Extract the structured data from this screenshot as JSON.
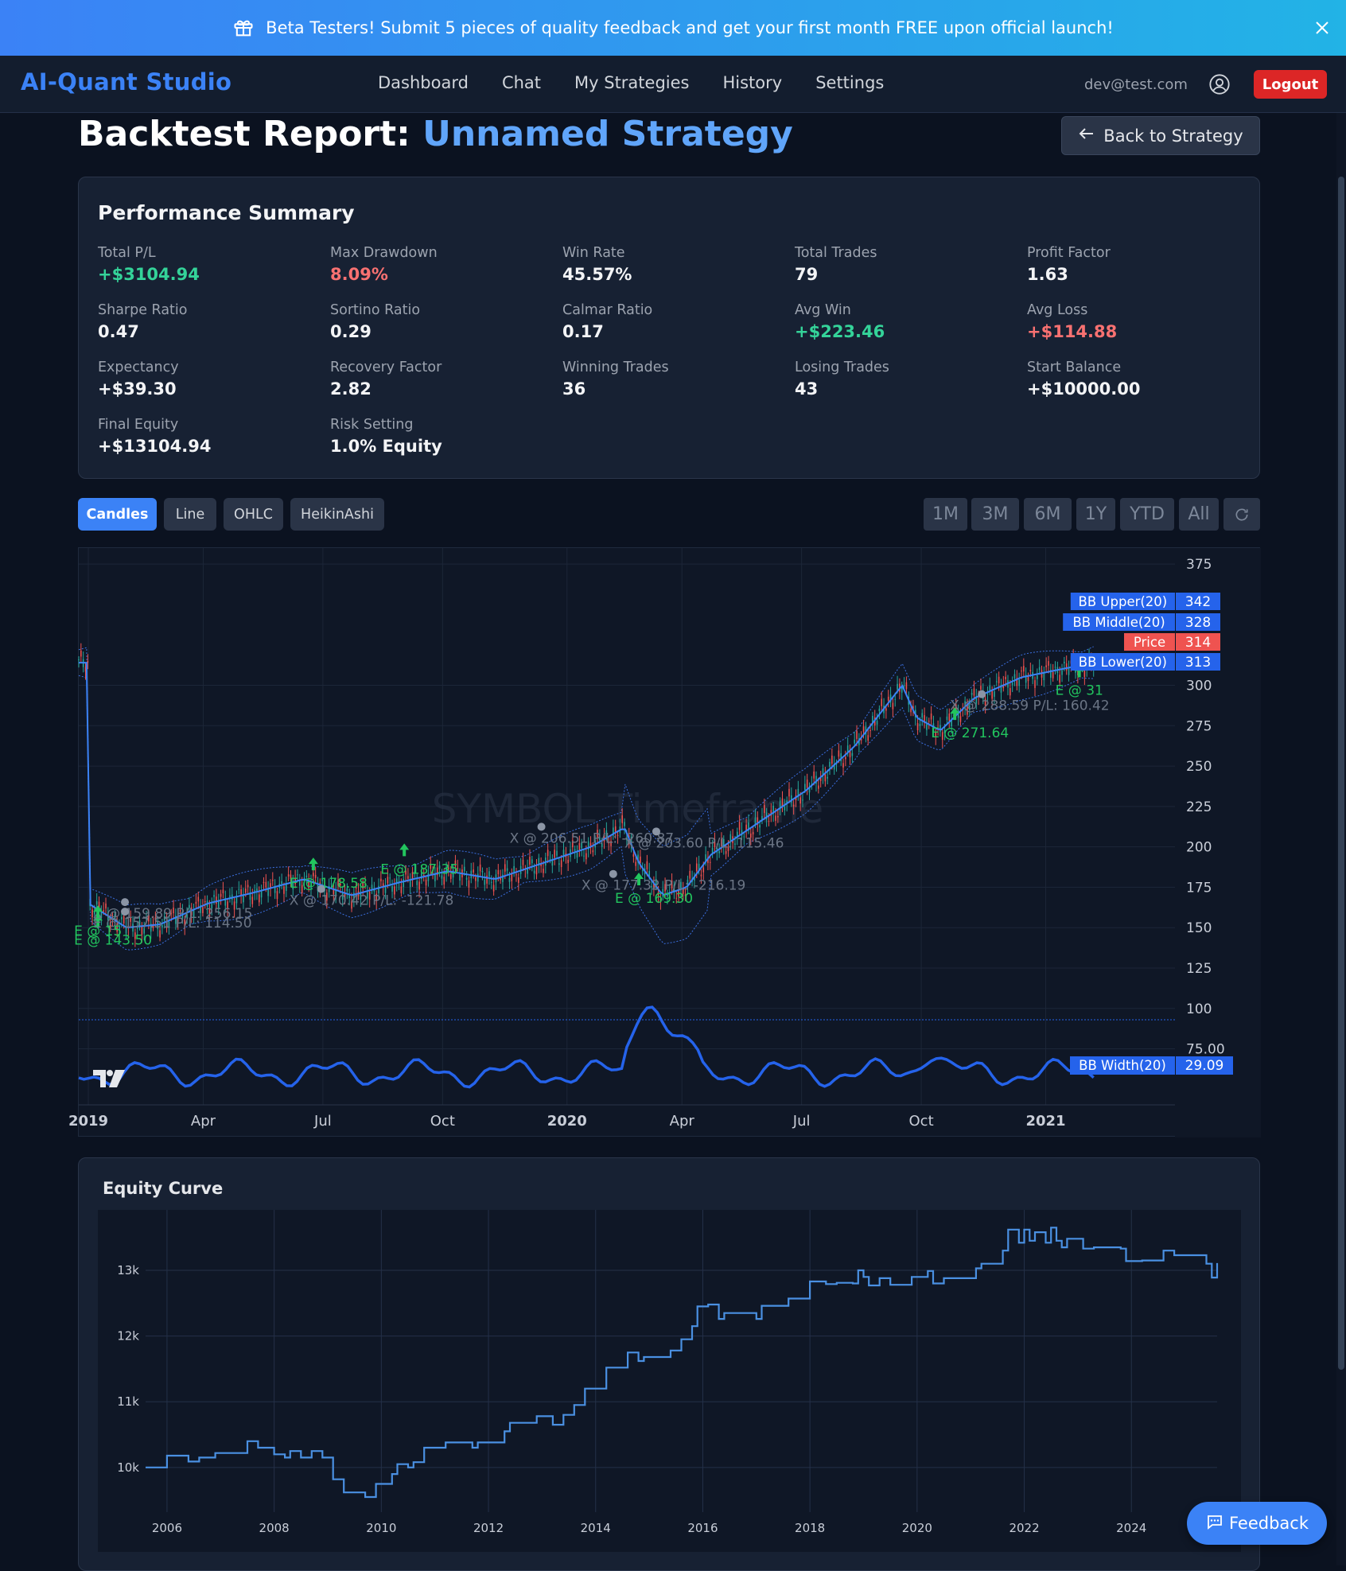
{
  "banner": {
    "text": "Beta Testers! Submit 5 pieces of quality feedback and get your first month FREE upon official launch!",
    "icon": "gift-icon",
    "close_icon": "close-icon"
  },
  "nav": {
    "brand": "AI-Quant Studio",
    "links": [
      "Dashboard",
      "Chat",
      "My Strategies",
      "History",
      "Settings"
    ],
    "user_email": "dev@test.com",
    "user_icon": "user-circle-icon",
    "logout_label": "Logout"
  },
  "page": {
    "title_prefix": "Backtest Report: ",
    "strategy_name": "Unnamed Strategy",
    "back_label": "Back to Strategy",
    "back_icon": "arrow-left-icon"
  },
  "performance": {
    "heading": "Performance Summary",
    "metrics": [
      {
        "label": "Total P/L",
        "value": "+$3104.94",
        "tone": "pos"
      },
      {
        "label": "Max Drawdown",
        "value": "8.09%",
        "tone": "neg"
      },
      {
        "label": "Win Rate",
        "value": "45.57%",
        "tone": ""
      },
      {
        "label": "Total Trades",
        "value": "79",
        "tone": ""
      },
      {
        "label": "Profit Factor",
        "value": "1.63",
        "tone": ""
      },
      {
        "label": "Sharpe Ratio",
        "value": "0.47",
        "tone": ""
      },
      {
        "label": "Sortino Ratio",
        "value": "0.29",
        "tone": ""
      },
      {
        "label": "Calmar Ratio",
        "value": "0.17",
        "tone": ""
      },
      {
        "label": "Avg Win",
        "value": "+$223.46",
        "tone": "pos"
      },
      {
        "label": "Avg Loss",
        "value": "+$114.88",
        "tone": "neg"
      },
      {
        "label": "Expectancy",
        "value": "+$39.30",
        "tone": ""
      },
      {
        "label": "Recovery Factor",
        "value": "2.82",
        "tone": ""
      },
      {
        "label": "Winning Trades",
        "value": "36",
        "tone": ""
      },
      {
        "label": "Losing Trades",
        "value": "43",
        "tone": ""
      },
      {
        "label": "Start Balance",
        "value": "+$10000.00",
        "tone": ""
      },
      {
        "label": "Final Equity",
        "value": "+$13104.94",
        "tone": ""
      },
      {
        "label": "Risk Setting",
        "value": "1.0% Equity",
        "tone": ""
      }
    ]
  },
  "chart_controls": {
    "types": [
      "Candles",
      "Line",
      "OHLC",
      "HeikinAshi"
    ],
    "active_type": "Candles",
    "ranges": [
      "1M",
      "3M",
      "6M",
      "1Y",
      "YTD",
      "All"
    ],
    "refresh_icon": "refresh-icon"
  },
  "chart_data": [
    {
      "type": "candlestick",
      "watermark": "SYMBOL Timeframe",
      "x_ticks": [
        "2019",
        "Apr",
        "Jul",
        "Oct",
        "2020",
        "Apr",
        "Jul",
        "Oct",
        "2021"
      ],
      "y_ticks": [
        "375",
        "300",
        "275",
        "250",
        "225",
        "200",
        "175",
        "150",
        "125",
        "100",
        "75.00"
      ],
      "ylim": [
        60,
        380
      ],
      "legend": [
        {
          "name": "BB Upper(20)",
          "value": "342",
          "color": "#2563eb"
        },
        {
          "name": "BB Middle(20)",
          "value": "328",
          "color": "#2563eb"
        },
        {
          "name": "Price",
          "value": "314",
          "color": "#ef5350"
        },
        {
          "name": "BB Lower(20)",
          "value": "313",
          "color": "#2563eb"
        },
        {
          "name": "BB Width(20)",
          "value": "29.09",
          "color": "#2563eb"
        }
      ],
      "price_path": [
        [
          2019.0,
          165
        ],
        [
          2019.08,
          150
        ],
        [
          2019.15,
          152
        ],
        [
          2019.25,
          165
        ],
        [
          2019.35,
          172
        ],
        [
          2019.45,
          180
        ],
        [
          2019.55,
          170
        ],
        [
          2019.65,
          178
        ],
        [
          2019.75,
          185
        ],
        [
          2019.85,
          180
        ],
        [
          2019.95,
          190
        ],
        [
          2020.05,
          200
        ],
        [
          2020.12,
          212
        ],
        [
          2020.15,
          190
        ],
        [
          2020.2,
          170
        ],
        [
          2020.25,
          175
        ],
        [
          2020.3,
          195
        ],
        [
          2020.4,
          215
        ],
        [
          2020.5,
          235
        ],
        [
          2020.6,
          262
        ],
        [
          2020.7,
          300
        ],
        [
          2020.73,
          280
        ],
        [
          2020.78,
          272
        ],
        [
          2020.85,
          292
        ],
        [
          2020.95,
          305
        ],
        [
          2021.1,
          314
        ]
      ],
      "trade_labels": [
        {
          "text": "E @ 143.50",
          "x": 2019.02,
          "y": 143.5,
          "kind": "entry"
        },
        {
          "text": "E @ 178.58",
          "x": 2019.47,
          "y": 178.58,
          "kind": "entry"
        },
        {
          "text": "X @ 170.42 P/L: -121.78",
          "x": 2019.42,
          "y": 168,
          "kind": "exit"
        },
        {
          "text": "E @ 187.35",
          "x": 2019.66,
          "y": 187.35,
          "kind": "entry"
        },
        {
          "text": "X @ 206.51 P/L: -260.87",
          "x": 2019.88,
          "y": 206.51,
          "kind": "exit"
        },
        {
          "text": "E @ 169.30",
          "x": 2020.15,
          "y": 169.3,
          "kind": "entry"
        },
        {
          "text": "X @ 177.32 P/L: -216.19",
          "x": 2020.03,
          "y": 177.32,
          "kind": "exit"
        },
        {
          "text": "X @ 203.60 P/L: 115.46",
          "x": 2020.12,
          "y": 203.6,
          "kind": "exit"
        },
        {
          "text": "E @ 271.64",
          "x": 2020.81,
          "y": 271.64,
          "kind": "entry"
        },
        {
          "text": "X @ 288.59 P/L: 160.42",
          "x": 2020.8,
          "y": 288.59,
          "kind": "exit"
        },
        {
          "text": "X @ 159.89 P/L: 256.15",
          "x": 2019.01,
          "y": 159.89,
          "kind": "exit"
        },
        {
          "text": "E @ 157.51 P/L: 114.50",
          "x": 2019.01,
          "y": 154,
          "kind": "exit"
        },
        {
          "text": "E @ 15",
          "x": 2019.02,
          "y": 149,
          "kind": "entry"
        },
        {
          "text": "E @ 31",
          "x": 2021.07,
          "y": 298,
          "kind": "entry"
        }
      ]
    },
    {
      "type": "line",
      "title": "Equity Curve",
      "x_ticks": [
        "2006",
        "2008",
        "2010",
        "2012",
        "2014",
        "2016",
        "2018",
        "2020",
        "2022",
        "2024"
      ],
      "y_ticks": [
        "10k",
        "11k",
        "12k",
        "13k"
      ],
      "xlim": [
        2005.6,
        2025.6
      ],
      "ylim": [
        9320,
        13920
      ],
      "points": [
        [
          2005.6,
          10000
        ],
        [
          2006.0,
          10180
        ],
        [
          2006.2,
          10180
        ],
        [
          2006.4,
          10090
        ],
        [
          2006.6,
          10150
        ],
        [
          2006.9,
          10220
        ],
        [
          2007.4,
          10220
        ],
        [
          2007.5,
          10400
        ],
        [
          2007.7,
          10300
        ],
        [
          2007.9,
          10300
        ],
        [
          2008.0,
          10200
        ],
        [
          2008.2,
          10150
        ],
        [
          2008.3,
          10250
        ],
        [
          2008.5,
          10150
        ],
        [
          2008.7,
          10250
        ],
        [
          2008.9,
          10150
        ],
        [
          2009.1,
          9820
        ],
        [
          2009.3,
          9620
        ],
        [
          2009.7,
          9550
        ],
        [
          2009.9,
          9750
        ],
        [
          2010.2,
          9900
        ],
        [
          2010.3,
          10050
        ],
        [
          2010.5,
          10000
        ],
        [
          2010.6,
          10080
        ],
        [
          2010.8,
          10300
        ],
        [
          2011.2,
          10380
        ],
        [
          2011.6,
          10380
        ],
        [
          2011.7,
          10300
        ],
        [
          2011.8,
          10380
        ],
        [
          2012.1,
          10380
        ],
        [
          2012.3,
          10550
        ],
        [
          2012.4,
          10680
        ],
        [
          2012.7,
          10680
        ],
        [
          2012.9,
          10780
        ],
        [
          2013.2,
          10650
        ],
        [
          2013.4,
          10800
        ],
        [
          2013.6,
          10950
        ],
        [
          2013.8,
          11200
        ],
        [
          2014.0,
          11200
        ],
        [
          2014.2,
          11520
        ],
        [
          2014.5,
          11520
        ],
        [
          2014.6,
          11750
        ],
        [
          2014.8,
          11620
        ],
        [
          2014.9,
          11680
        ],
        [
          2015.4,
          11780
        ],
        [
          2015.6,
          11950
        ],
        [
          2015.8,
          12150
        ],
        [
          2015.9,
          12450
        ],
        [
          2016.1,
          12480
        ],
        [
          2016.3,
          12260
        ],
        [
          2016.4,
          12350
        ],
        [
          2016.5,
          12350
        ],
        [
          2016.8,
          12350
        ],
        [
          2017.0,
          12260
        ],
        [
          2017.1,
          12460
        ],
        [
          2017.6,
          12570
        ],
        [
          2017.9,
          12570
        ],
        [
          2018.0,
          12830
        ],
        [
          2018.3,
          12790
        ],
        [
          2018.5,
          12810
        ],
        [
          2018.8,
          12800
        ],
        [
          2018.9,
          13000
        ],
        [
          2019.0,
          12900
        ],
        [
          2019.1,
          12770
        ],
        [
          2019.3,
          12880
        ],
        [
          2019.5,
          12780
        ],
        [
          2019.9,
          12900
        ],
        [
          2020.2,
          12990
        ],
        [
          2020.3,
          12800
        ],
        [
          2020.5,
          12880
        ],
        [
          2020.9,
          12880
        ],
        [
          2021.1,
          13030
        ],
        [
          2021.2,
          13100
        ],
        [
          2021.5,
          13100
        ],
        [
          2021.6,
          13300
        ],
        [
          2021.7,
          13620
        ],
        [
          2021.9,
          13420
        ],
        [
          2022.0,
          13620
        ],
        [
          2022.1,
          13450
        ],
        [
          2022.2,
          13580
        ],
        [
          2022.4,
          13420
        ],
        [
          2022.5,
          13650
        ],
        [
          2022.6,
          13450
        ],
        [
          2022.7,
          13350
        ],
        [
          2022.8,
          13480
        ],
        [
          2023.1,
          13330
        ],
        [
          2023.3,
          13350
        ],
        [
          2023.8,
          13330
        ],
        [
          2023.9,
          13140
        ],
        [
          2024.2,
          13150
        ],
        [
          2024.5,
          13150
        ],
        [
          2024.6,
          13300
        ],
        [
          2024.8,
          13230
        ],
        [
          2025.2,
          13230
        ],
        [
          2025.4,
          13100
        ],
        [
          2025.5,
          12890
        ],
        [
          2025.6,
          13110
        ]
      ]
    }
  ],
  "feedback": {
    "label": "Feedback",
    "icon": "chat-bubble-icon"
  }
}
